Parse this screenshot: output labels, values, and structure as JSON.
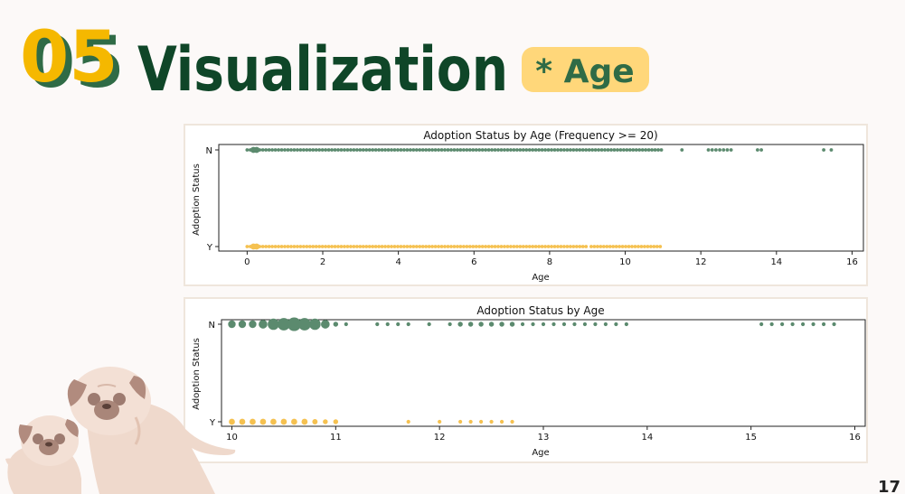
{
  "slide": {
    "section_number": "05",
    "title": "Visualization",
    "tag": "* Age",
    "page_number": "17"
  },
  "colors": {
    "title": "#0f4628",
    "section_number": "#f5b800",
    "section_shadow": "#2f6b46",
    "tag_bg": "#ffd77a",
    "tag_text": "#2f6b46",
    "series_N": "#5b8a6e",
    "series_Y": "#f5c150",
    "card_border": "#efe6dc"
  },
  "chart_data": [
    {
      "type": "scatter",
      "title": "Adoption Status by Age (Frequency >= 20)",
      "xlabel": "Age",
      "ylabel": "Adoption Status",
      "xlim": [
        -0.75,
        16.3
      ],
      "xticks": [
        0,
        2,
        4,
        6,
        8,
        10,
        12,
        14,
        16
      ],
      "yticks": [
        "N",
        "Y"
      ],
      "grid": false,
      "point_spacing": 0.083,
      "series": [
        {
          "category": "N",
          "ranges": [
            [
              0,
              11
            ]
          ],
          "points": [
            11.5,
            12.2,
            12.3,
            12.4,
            12.5,
            12.6,
            12.7,
            12.8,
            13.5,
            13.6,
            15.25,
            15.45
          ],
          "big": [
            0.167,
            0.25
          ]
        },
        {
          "category": "Y",
          "ranges": [
            [
              0,
              9.0
            ],
            [
              9.1,
              11
            ]
          ],
          "points": [],
          "big": [
            0.167,
            0.25
          ]
        }
      ]
    },
    {
      "type": "scatter",
      "title": "Adoption Status by Age",
      "xlabel": "Age",
      "ylabel": "Adoption Status",
      "xlim": [
        9.9,
        16.1
      ],
      "xticks": [
        10,
        11,
        12,
        13,
        14,
        15,
        16
      ],
      "yticks": [
        "N",
        "Y"
      ],
      "grid": false,
      "series": [
        {
          "category": "N",
          "points": [
            [
              10.0,
              2
            ],
            [
              10.1,
              2
            ],
            [
              10.2,
              2
            ],
            [
              10.3,
              2.3
            ],
            [
              10.4,
              3
            ],
            [
              10.5,
              3.3
            ],
            [
              10.6,
              3.6
            ],
            [
              10.7,
              3.3
            ],
            [
              10.8,
              3
            ],
            [
              10.9,
              2.3
            ],
            [
              11.0,
              1.3
            ],
            [
              11.1,
              1
            ],
            [
              11.4,
              1
            ],
            [
              11.5,
              1
            ],
            [
              11.6,
              1
            ],
            [
              11.7,
              1
            ],
            [
              11.9,
              1
            ],
            [
              12.1,
              1
            ],
            [
              12.2,
              1.3
            ],
            [
              12.3,
              1.3
            ],
            [
              12.4,
              1.3
            ],
            [
              12.5,
              1.3
            ],
            [
              12.6,
              1.3
            ],
            [
              12.7,
              1.3
            ],
            [
              12.8,
              1
            ],
            [
              12.9,
              1
            ],
            [
              13.0,
              1
            ],
            [
              13.1,
              1
            ],
            [
              13.2,
              1
            ],
            [
              13.3,
              1
            ],
            [
              13.4,
              1
            ],
            [
              13.5,
              1
            ],
            [
              13.6,
              1
            ],
            [
              13.7,
              1
            ],
            [
              13.8,
              1
            ],
            [
              15.1,
              1
            ],
            [
              15.2,
              1
            ],
            [
              15.3,
              1
            ],
            [
              15.4,
              1
            ],
            [
              15.5,
              1
            ],
            [
              15.6,
              1
            ],
            [
              15.7,
              1
            ],
            [
              15.8,
              1
            ]
          ]
        },
        {
          "category": "Y",
          "points": [
            [
              10.0,
              1.6
            ],
            [
              10.1,
              1.6
            ],
            [
              10.2,
              1.6
            ],
            [
              10.3,
              1.6
            ],
            [
              10.4,
              1.6
            ],
            [
              10.5,
              1.6
            ],
            [
              10.6,
              1.6
            ],
            [
              10.7,
              1.6
            ],
            [
              10.8,
              1.4
            ],
            [
              10.9,
              1.3
            ],
            [
              11.0,
              1.3
            ],
            [
              11.7,
              1
            ],
            [
              12.0,
              1
            ],
            [
              12.2,
              1
            ],
            [
              12.3,
              1
            ],
            [
              12.4,
              1
            ],
            [
              12.5,
              1
            ],
            [
              12.6,
              1
            ],
            [
              12.7,
              1
            ]
          ]
        }
      ]
    }
  ]
}
